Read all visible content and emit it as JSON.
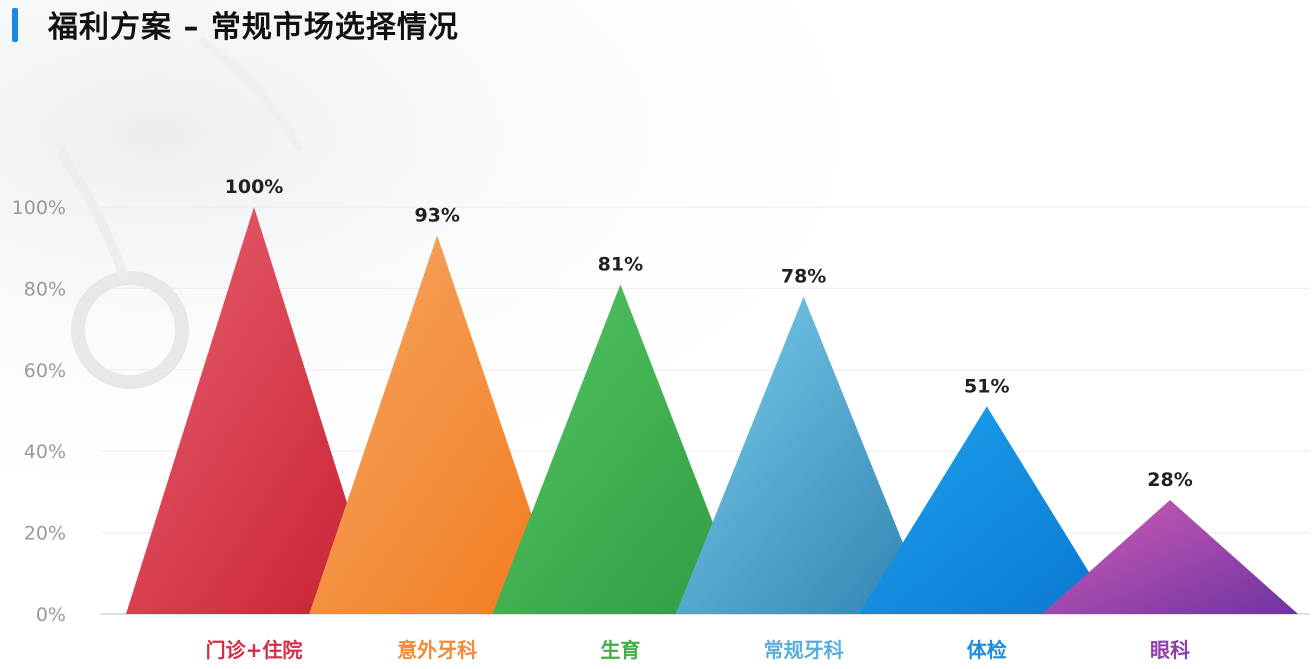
{
  "title": "福利方案 – 常规市场选择情况",
  "chart_data": {
    "type": "bar",
    "categories": [
      "门诊+住院",
      "意外牙科",
      "生育",
      "常规牙科",
      "体检",
      "眼科"
    ],
    "values": [
      100,
      93,
      81,
      78,
      51,
      28
    ],
    "data_labels": [
      "100%",
      "93%",
      "81%",
      "78%",
      "51%",
      "28%"
    ],
    "yticks": [
      "0%",
      "20%",
      "40%",
      "60%",
      "80%",
      "100%"
    ],
    "ylim": [
      0,
      100
    ],
    "grid": true,
    "legend": "none",
    "colors": [
      [
        "#e8616e",
        "#c81f33"
      ],
      [
        "#f6a765",
        "#f27a1c"
      ],
      [
        "#52c562",
        "#2f9b40"
      ],
      [
        "#7cccec",
        "#2f83b0"
      ],
      [
        "#1ea1ef",
        "#0a78cf"
      ],
      [
        "#d05eb6",
        "#6f33a2"
      ]
    ],
    "label_colors": [
      "#d42d45",
      "#f28a3a",
      "#3fae4b",
      "#5aaedb",
      "#1c8be0",
      "#8e3fa8"
    ]
  }
}
